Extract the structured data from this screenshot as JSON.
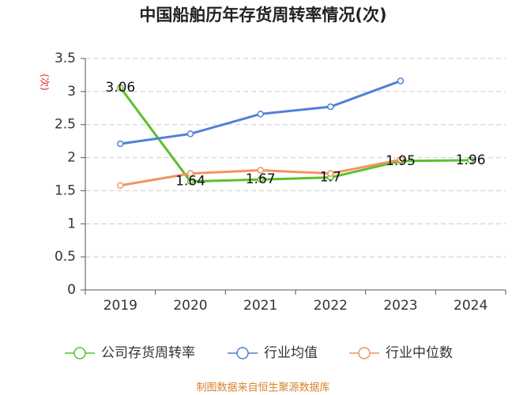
{
  "chart_data": {
    "type": "line",
    "title": "中国船舶历年存货周转率情况(次)",
    "y_label": "(次)",
    "categories": [
      "2019",
      "2020",
      "2021",
      "2022",
      "2023",
      "2024"
    ],
    "series": [
      {
        "name": "公司存货周转率",
        "color": "#5ac12c",
        "values": [
          3.06,
          1.64,
          1.67,
          1.7,
          1.95,
          1.96
        ],
        "labels": true
      },
      {
        "name": "行业均值",
        "color": "#4f81d6",
        "values": [
          2.21,
          2.36,
          2.66,
          2.77,
          3.16,
          null
        ]
      },
      {
        "name": "行业中位数",
        "color": "#f39460",
        "values": [
          1.58,
          1.76,
          1.81,
          1.76,
          1.97,
          null
        ]
      }
    ],
    "ylim": [
      0,
      3.5
    ],
    "yticks": [
      0,
      0.5,
      1,
      1.5,
      2,
      2.5,
      3,
      3.5
    ],
    "grid": true,
    "source": "制图数据来自恒生聚源数据库"
  }
}
